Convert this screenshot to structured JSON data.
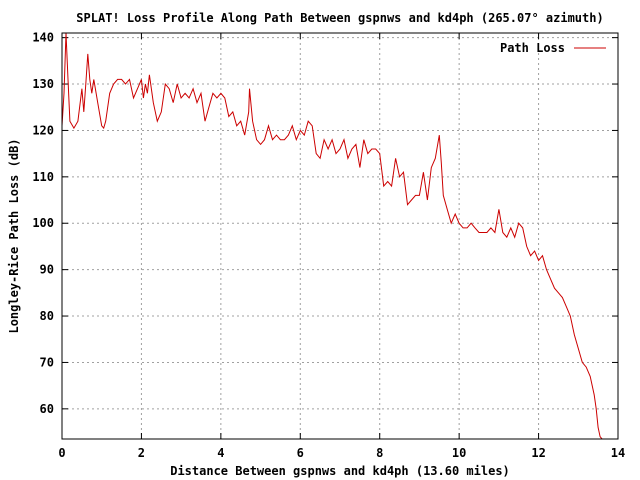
{
  "chart_data": {
    "type": "line",
    "title": "SPLAT! Loss Profile Along Path Between gspnws and kd4ph (265.07° azimuth)",
    "xlabel": "Distance Between gspnws and kd4ph (13.60 miles)",
    "ylabel": "Longley-Rice Path Loss (dB)",
    "xlim": [
      0,
      14
    ],
    "ylim": [
      53.5,
      141
    ],
    "x_ticks": [
      "0",
      "2",
      "4",
      "6",
      "8",
      "10",
      "12",
      "14"
    ],
    "y_ticks": [
      "60",
      "70",
      "80",
      "90",
      "100",
      "110",
      "120",
      "130",
      "140"
    ],
    "grid": true,
    "legend_position": "top-right",
    "series": [
      {
        "name": "Path Loss",
        "color": "#cc0000",
        "x": [
          0.0,
          0.05,
          0.1,
          0.15,
          0.2,
          0.3,
          0.4,
          0.5,
          0.55,
          0.6,
          0.65,
          0.7,
          0.75,
          0.8,
          0.9,
          1.0,
          1.05,
          1.1,
          1.2,
          1.3,
          1.4,
          1.5,
          1.6,
          1.7,
          1.8,
          1.9,
          2.0,
          2.05,
          2.1,
          2.15,
          2.2,
          2.3,
          2.4,
          2.5,
          2.6,
          2.7,
          2.8,
          2.9,
          3.0,
          3.1,
          3.2,
          3.3,
          3.4,
          3.5,
          3.6,
          3.7,
          3.8,
          3.9,
          4.0,
          4.1,
          4.2,
          4.3,
          4.4,
          4.5,
          4.6,
          4.7,
          4.72,
          4.8,
          4.9,
          5.0,
          5.1,
          5.2,
          5.3,
          5.4,
          5.5,
          5.6,
          5.7,
          5.8,
          5.9,
          6.0,
          6.1,
          6.2,
          6.3,
          6.4,
          6.5,
          6.6,
          6.7,
          6.8,
          6.9,
          7.0,
          7.1,
          7.2,
          7.3,
          7.4,
          7.5,
          7.6,
          7.7,
          7.8,
          7.9,
          8.0,
          8.1,
          8.2,
          8.3,
          8.4,
          8.5,
          8.6,
          8.7,
          8.8,
          8.9,
          9.0,
          9.1,
          9.2,
          9.3,
          9.4,
          9.5,
          9.55,
          9.6,
          9.7,
          9.8,
          9.9,
          10.0,
          10.1,
          10.2,
          10.3,
          10.4,
          10.5,
          10.6,
          10.7,
          10.8,
          10.9,
          11.0,
          11.1,
          11.2,
          11.3,
          11.4,
          11.5,
          11.6,
          11.7,
          11.8,
          11.9,
          12.0,
          12.1,
          12.2,
          12.3,
          12.4,
          12.5,
          12.6,
          12.7,
          12.8,
          12.9,
          13.0,
          13.1,
          13.2,
          13.3,
          13.4,
          13.45,
          13.5,
          13.55,
          13.6
        ],
        "values": [
          121,
          128,
          141,
          131,
          122,
          120.5,
          122,
          129,
          124,
          130,
          136.5,
          131,
          128,
          131,
          126,
          121,
          120.5,
          122,
          128,
          130,
          131,
          131,
          130,
          131,
          127,
          129,
          131,
          127,
          130,
          128,
          132,
          126,
          122,
          124,
          130,
          129,
          126,
          130,
          127,
          128,
          127,
          129,
          126,
          128,
          122,
          125,
          128,
          127,
          128,
          127,
          123,
          124,
          121,
          122,
          119,
          124,
          129,
          122,
          118,
          117,
          118,
          121,
          118,
          119,
          118,
          118,
          119,
          121,
          118,
          120,
          119,
          122,
          121,
          115,
          114,
          118,
          116,
          118,
          115,
          116,
          118,
          114,
          116,
          117,
          112,
          118,
          115,
          116,
          116,
          115,
          108,
          109,
          108,
          114,
          110,
          111,
          104,
          105,
          106,
          106,
          111,
          105,
          112,
          114,
          119,
          113,
          106,
          103,
          100,
          102,
          100,
          99,
          99,
          100,
          99,
          98,
          98,
          98,
          99,
          98,
          103,
          98,
          97,
          99,
          97,
          100,
          99,
          95,
          93,
          94,
          92,
          93,
          90,
          88,
          86,
          85,
          84,
          82,
          80,
          76,
          73,
          70,
          69,
          67,
          63,
          60,
          56,
          54,
          53.5
        ]
      }
    ]
  }
}
